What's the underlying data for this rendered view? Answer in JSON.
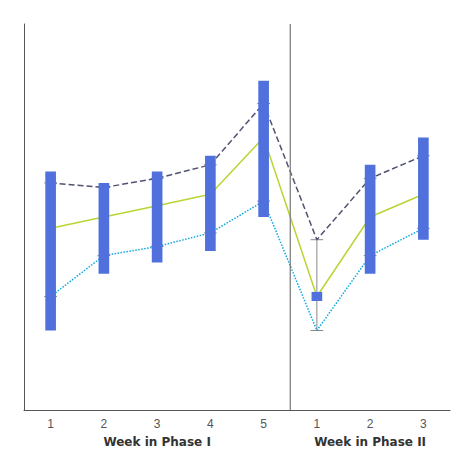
{
  "chart_data": {
    "type": "line",
    "groups": [
      {
        "xlabel": "Week in Phase I",
        "categories": [
          "1",
          "2",
          "3",
          "4",
          "5"
        ]
      },
      {
        "xlabel": "Week in Phase II",
        "categories": [
          "1",
          "2",
          "3"
        ]
      }
    ],
    "series": [
      {
        "type": "range",
        "low": [
          2.05,
          2.3,
          2.35,
          2.4,
          2.55,
          2.18,
          2.3,
          2.45
        ],
        "high": [
          2.75,
          2.7,
          2.75,
          2.82,
          3.15,
          2.22,
          2.78,
          2.9
        ]
      },
      {
        "type": "line",
        "line_style": "solid",
        "values": [
          2.5,
          2.55,
          2.6,
          2.65,
          2.9,
          2.2,
          2.55,
          2.65
        ]
      },
      {
        "type": "line",
        "line_style": "dashed",
        "marker": "cap",
        "values": [
          2.7,
          2.68,
          2.72,
          2.78,
          3.05,
          2.45,
          2.72,
          2.82
        ]
      },
      {
        "type": "line",
        "line_style": "dotted",
        "marker": "cap",
        "values": [
          2.2,
          2.38,
          2.42,
          2.48,
          2.62,
          2.05,
          2.38,
          2.5
        ]
      }
    ],
    "ylim": [
      1.7,
      3.4
    ],
    "tick_labels": "x",
    "grid": false
  }
}
